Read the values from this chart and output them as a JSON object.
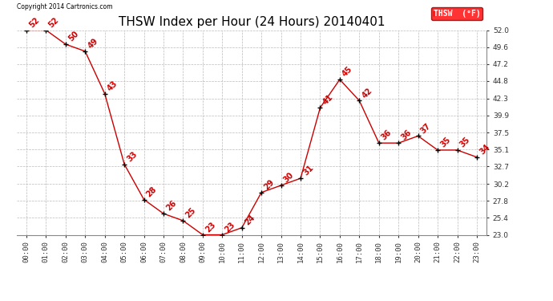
{
  "title": "THSW Index per Hour (24 Hours) 20140401",
  "copyright_text": "Copyright 2014 Cartronics.com",
  "legend_label": "THSW  (°F)",
  "hours": [
    "00:00",
    "01:00",
    "02:00",
    "03:00",
    "04:00",
    "05:00",
    "06:00",
    "07:00",
    "08:00",
    "09:00",
    "10:00",
    "11:00",
    "12:00",
    "13:00",
    "14:00",
    "15:00",
    "16:00",
    "17:00",
    "18:00",
    "19:00",
    "20:00",
    "21:00",
    "22:00",
    "23:00"
  ],
  "values": [
    52,
    52,
    50,
    49,
    43,
    33,
    28,
    26,
    25,
    23,
    23,
    24,
    29,
    30,
    31,
    41,
    45,
    42,
    36,
    36,
    37,
    35,
    35,
    34
  ],
  "line_color": "#cc0000",
  "marker_color": "#000000",
  "label_color": "#cc0000",
  "bg_color": "#ffffff",
  "grid_color": "#bbbbbb",
  "ylim_min": 23.0,
  "ylim_max": 52.0,
  "yticks": [
    23.0,
    25.4,
    27.8,
    30.2,
    32.7,
    35.1,
    37.5,
    39.9,
    42.3,
    44.8,
    47.2,
    49.6,
    52.0
  ],
  "title_fontsize": 11,
  "tick_fontsize": 6.5,
  "label_fontsize": 7,
  "copyright_fontsize": 5.5,
  "legend_fontsize": 7,
  "figwidth": 6.9,
  "figheight": 3.75,
  "dpi": 100
}
